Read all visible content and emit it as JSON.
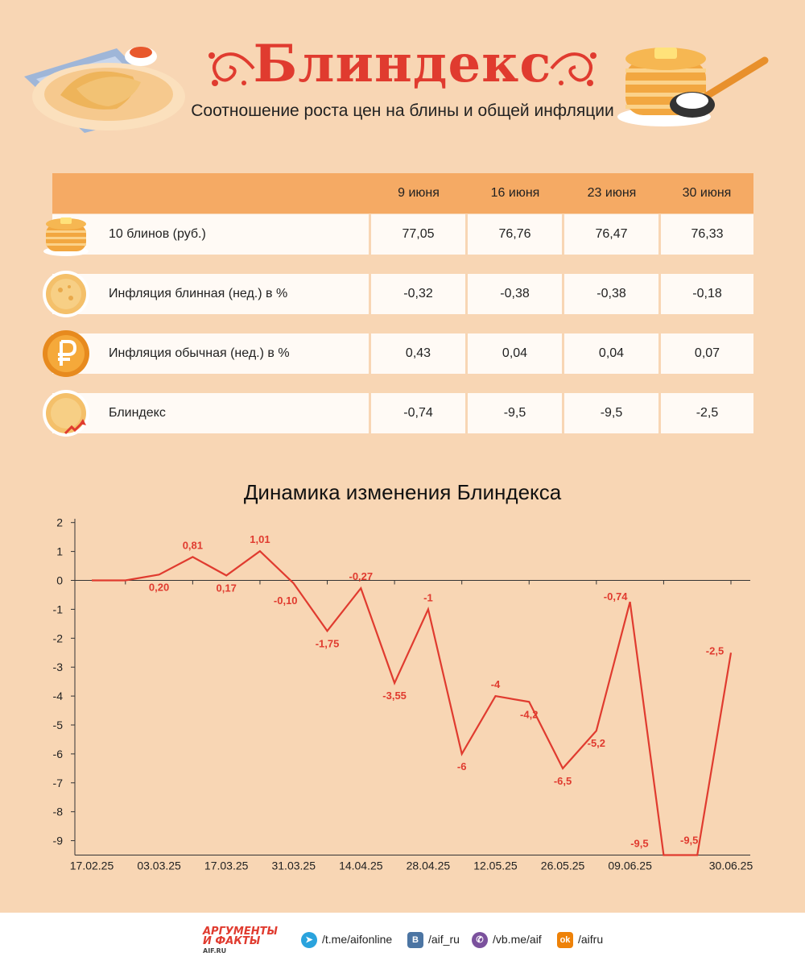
{
  "header": {
    "title": "Блиндекс",
    "subtitle": "Соотношение роста цен на блины и общей инфляции"
  },
  "table": {
    "columns": [
      "9 июня",
      "16 июня",
      "23 июня",
      "30 июня"
    ],
    "rows": [
      {
        "label": "10 блинов (руб.)",
        "icon": "pancake-stack-icon",
        "values": [
          "77,05",
          "76,76",
          "76,47",
          "76,33"
        ]
      },
      {
        "label": "Инфляция блинная (нед.) в %",
        "icon": "pancake-icon",
        "values": [
          "-0,32",
          "-0,38",
          "-0,38",
          "-0,18"
        ]
      },
      {
        "label": "Инфляция обычная (нед.) в %",
        "icon": "ruble-coin-icon",
        "values": [
          "0,43",
          "0,04",
          "0,04",
          "0,07"
        ]
      },
      {
        "label": "Блиндекс",
        "icon": "pancake-trend-icon",
        "values": [
          "-0,74",
          "-9,5",
          "-9,5",
          "-2,5"
        ]
      }
    ]
  },
  "chart_data": {
    "type": "line",
    "title": "Динамика изменения Блиндекса",
    "ylim": [
      -9.5,
      2
    ],
    "yticks": [
      "2",
      "1",
      "0",
      "-1",
      "-2",
      "-3",
      "-4",
      "-5",
      "-6",
      "-7",
      "-8",
      "-9"
    ],
    "xtick_labels": [
      "17.02.25",
      "03.03.25",
      "17.03.25",
      "31.03.25",
      "14.04.25",
      "28.04.25",
      "12.05.25",
      "26.05.25",
      "09.06.25",
      "30.06.25"
    ],
    "series": [
      {
        "color": "#e03b2f",
        "x": [
          "17.02.25",
          "24.02.25",
          "03.03.25",
          "10.03.25",
          "17.03.25",
          "24.03.25",
          "31.03.25",
          "07.04.25",
          "14.04.25",
          "21.04.25",
          "28.04.25",
          "05.05.25",
          "12.05.25",
          "19.05.25",
          "26.05.25",
          "02.06.25",
          "09.06.25",
          "16.06.25",
          "23.06.25",
          "30.06.25"
        ],
        "values": [
          0,
          0,
          0.2,
          0.81,
          0.17,
          1.01,
          -0.1,
          -1.75,
          -0.27,
          -3.55,
          -1,
          -6,
          -4,
          -4.2,
          -6.5,
          -5.2,
          -0.74,
          -9.5,
          -9.5,
          -2.5
        ],
        "labels": [
          "",
          "",
          "0,20",
          "0,81",
          "0,17",
          "1,01",
          "-0,10",
          "-1,75",
          "-0,27",
          "-3,55",
          "-1",
          "-6",
          "-4",
          "-4,2",
          "-6,5",
          "-5,2",
          "-0,74",
          "-9,5",
          "-9,5",
          "-2,5"
        ]
      }
    ]
  },
  "footer": {
    "logo_line1": "АРГУМЕНТЫ",
    "logo_line2": "И ФАКТЫ",
    "logo_line3": "AIF.RU",
    "links": [
      {
        "icon": "telegram-icon",
        "text": "/t.me/aifonline"
      },
      {
        "icon": "vk-icon",
        "text": "/aif_ru"
      },
      {
        "icon": "viber-icon",
        "text": "/vb.me/aif"
      },
      {
        "icon": "odnoklassniki-icon",
        "text": "/aifru"
      }
    ]
  },
  "colors": {
    "accent": "#e03b2f",
    "background": "#f8d6b4",
    "header_row": "#f5aa64"
  }
}
